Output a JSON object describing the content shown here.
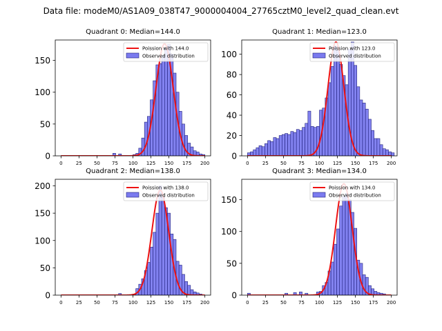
{
  "suptitle": "Data file: modeM0/AS1A09_038T47_9000004004_27765cztM0_level2_quad_clean.evt",
  "colors": {
    "bar_fill": "#7b7bef",
    "bar_edge": "#1f1f7a",
    "fit_line": "#ee1111",
    "axis": "#000000"
  },
  "chart_data": [
    {
      "type": "bar",
      "title": "Quadrant 0: Median=144.0",
      "legend": [
        "Poission with 144.0",
        "Observed distribution"
      ],
      "legend_position": "upper-right",
      "xlim": [
        -8,
        208
      ],
      "ylim": [
        0,
        182
      ],
      "xticks": [
        0,
        25,
        50,
        75,
        100,
        125,
        150,
        175,
        200
      ],
      "yticks": [
        0,
        50,
        100,
        150
      ],
      "bin_width": 4,
      "bins": [
        [
          72,
          4
        ],
        [
          80,
          3
        ],
        [
          100,
          2
        ],
        [
          104,
          4
        ],
        [
          108,
          12
        ],
        [
          112,
          28
        ],
        [
          116,
          53
        ],
        [
          120,
          62
        ],
        [
          124,
          88
        ],
        [
          128,
          118
        ],
        [
          132,
          143
        ],
        [
          136,
          145
        ],
        [
          140,
          158
        ],
        [
          144,
          170
        ],
        [
          148,
          175
        ],
        [
          152,
          160
        ],
        [
          156,
          130
        ],
        [
          160,
          100
        ],
        [
          164,
          70
        ],
        [
          168,
          50
        ],
        [
          172,
          32
        ],
        [
          176,
          20
        ],
        [
          180,
          14
        ],
        [
          184,
          8
        ],
        [
          188,
          6
        ],
        [
          192,
          3
        ],
        [
          196,
          2
        ]
      ],
      "fit": {
        "model": "poisson",
        "mean": 144.0,
        "peak": 176
      }
    },
    {
      "type": "bar",
      "title": "Quadrant 1: Median=123.0",
      "legend": [
        "Poission with 123.0",
        "Observed distribution"
      ],
      "legend_position": "upper-right",
      "xlim": [
        -8,
        208
      ],
      "ylim": [
        0,
        114
      ],
      "xticks": [
        0,
        25,
        50,
        75,
        100,
        125,
        150,
        175,
        200
      ],
      "yticks": [
        0,
        20,
        40,
        60,
        80,
        100
      ],
      "bin_width": 4,
      "bins": [
        [
          0,
          3
        ],
        [
          4,
          4
        ],
        [
          8,
          6
        ],
        [
          12,
          8
        ],
        [
          16,
          10
        ],
        [
          20,
          9
        ],
        [
          24,
          12
        ],
        [
          28,
          15
        ],
        [
          32,
          14
        ],
        [
          36,
          18
        ],
        [
          40,
          17
        ],
        [
          44,
          20
        ],
        [
          48,
          21
        ],
        [
          52,
          22
        ],
        [
          56,
          21
        ],
        [
          60,
          24
        ],
        [
          64,
          23
        ],
        [
          68,
          26
        ],
        [
          72,
          25
        ],
        [
          76,
          28
        ],
        [
          80,
          32
        ],
        [
          84,
          44
        ],
        [
          88,
          29
        ],
        [
          92,
          28
        ],
        [
          96,
          29
        ],
        [
          100,
          45
        ],
        [
          104,
          47
        ],
        [
          108,
          57
        ],
        [
          112,
          72
        ],
        [
          116,
          88
        ],
        [
          120,
          108
        ],
        [
          124,
          104
        ],
        [
          128,
          90
        ],
        [
          132,
          79
        ],
        [
          136,
          70
        ],
        [
          140,
          105
        ],
        [
          144,
          112
        ],
        [
          148,
          89
        ],
        [
          152,
          68
        ],
        [
          156,
          55
        ],
        [
          160,
          52
        ],
        [
          164,
          46
        ],
        [
          168,
          36
        ],
        [
          172,
          25
        ],
        [
          176,
          17
        ],
        [
          180,
          17
        ],
        [
          184,
          11
        ],
        [
          188,
          7
        ],
        [
          192,
          6
        ],
        [
          196,
          4
        ],
        [
          200,
          3
        ]
      ],
      "fit": {
        "model": "poisson",
        "mean": 123.0,
        "peak": 112
      }
    },
    {
      "type": "bar",
      "title": "Quadrant 2: Median=138.0",
      "legend": [
        "Poission with 138.0",
        "Observed distribution"
      ],
      "legend_position": "upper-right",
      "xlim": [
        -8,
        208
      ],
      "ylim": [
        0,
        212
      ],
      "xticks": [
        0,
        25,
        50,
        75,
        100,
        125,
        150,
        175,
        200
      ],
      "yticks": [
        0,
        50,
        100,
        150,
        200
      ],
      "bin_width": 4,
      "bins": [
        [
          80,
          3
        ],
        [
          100,
          2
        ],
        [
          104,
          12
        ],
        [
          108,
          20
        ],
        [
          112,
          30
        ],
        [
          116,
          45
        ],
        [
          120,
          60
        ],
        [
          124,
          88
        ],
        [
          128,
          115
        ],
        [
          132,
          150
        ],
        [
          136,
          200
        ],
        [
          140,
          180
        ],
        [
          144,
          160
        ],
        [
          148,
          150
        ],
        [
          152,
          112
        ],
        [
          156,
          102
        ],
        [
          160,
          62
        ],
        [
          164,
          55
        ],
        [
          168,
          38
        ],
        [
          172,
          25
        ],
        [
          176,
          18
        ],
        [
          180,
          10
        ],
        [
          184,
          6
        ],
        [
          188,
          4
        ],
        [
          192,
          2
        ]
      ],
      "fit": {
        "model": "poisson",
        "mean": 138.0,
        "peak": 192
      }
    },
    {
      "type": "bar",
      "title": "Quadrant 3: Median=134.0",
      "legend": [
        "Poission with 134.0",
        "Observed distribution"
      ],
      "legend_position": "upper-right",
      "xlim": [
        -8,
        208
      ],
      "ylim": [
        0,
        182
      ],
      "xticks": [
        0,
        25,
        50,
        75,
        100,
        125,
        150,
        175,
        200
      ],
      "yticks": [
        0,
        50,
        100,
        150
      ],
      "bin_width": 4,
      "bins": [
        [
          0,
          3
        ],
        [
          52,
          3
        ],
        [
          64,
          4
        ],
        [
          72,
          5
        ],
        [
          80,
          3
        ],
        [
          96,
          5
        ],
        [
          100,
          6
        ],
        [
          104,
          15
        ],
        [
          108,
          20
        ],
        [
          112,
          38
        ],
        [
          116,
          52
        ],
        [
          120,
          80
        ],
        [
          124,
          104
        ],
        [
          128,
          140
        ],
        [
          132,
          155
        ],
        [
          136,
          160
        ],
        [
          140,
          150
        ],
        [
          144,
          130
        ],
        [
          148,
          105
        ],
        [
          152,
          55
        ],
        [
          156,
          50
        ],
        [
          160,
          32
        ],
        [
          164,
          28
        ],
        [
          168,
          15
        ],
        [
          172,
          10
        ],
        [
          176,
          6
        ],
        [
          180,
          4
        ],
        [
          184,
          3
        ],
        [
          188,
          2
        ]
      ],
      "fit": {
        "model": "poisson",
        "mean": 134.0,
        "peak": 175
      }
    }
  ]
}
